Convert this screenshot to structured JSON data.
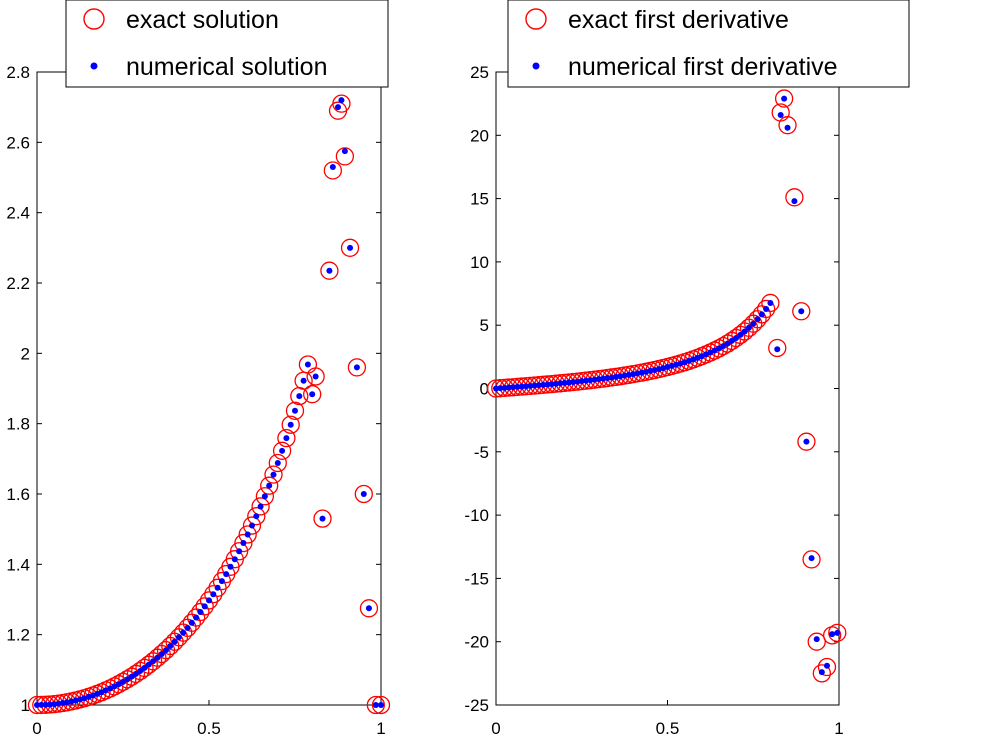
{
  "chart_data": [
    {
      "type": "scatter",
      "xlim": [
        0,
        1
      ],
      "ylim": [
        1,
        2.8
      ],
      "xticks": [
        "0",
        "0.5",
        "1"
      ],
      "yticks": [
        "1",
        "1.2",
        "1.4",
        "1.6",
        "1.8",
        "2",
        "2.2",
        "2.4",
        "2.6",
        "2.8"
      ],
      "legend_position": "top",
      "series": [
        {
          "name": "exact solution",
          "marker": "circle-open",
          "color": "#ff0000",
          "x": [
            0,
            0.0125,
            0.025,
            0.0375,
            0.05,
            0.0625,
            0.075,
            0.0875,
            0.1,
            0.1125,
            0.125,
            0.1375,
            0.15,
            0.1625,
            0.175,
            0.1875,
            0.2,
            0.2125,
            0.225,
            0.2375,
            0.25,
            0.2625,
            0.275,
            0.2875,
            0.3,
            0.3125,
            0.325,
            0.3375,
            0.35,
            0.3625,
            0.375,
            0.3875,
            0.4,
            0.4125,
            0.425,
            0.4375,
            0.45,
            0.4625,
            0.475,
            0.4875,
            0.5,
            0.5125,
            0.525,
            0.5375,
            0.55,
            0.5625,
            0.575,
            0.5875,
            0.6,
            0.6125,
            0.625,
            0.6375,
            0.65,
            0.6625,
            0.675,
            0.6875,
            0.7,
            0.7125,
            0.725,
            0.7375,
            0.75,
            0.7625,
            0.775,
            0.7875,
            0.8,
            0.81,
            0.83,
            0.85,
            0.86,
            0.875,
            0.885,
            0.895,
            0.91,
            0.93,
            0.95,
            0.965,
            0.985,
            1.0
          ],
          "y": [
            1.0,
            1.0002,
            1.0006,
            1.0014,
            1.0025,
            1.0039,
            1.0056,
            1.0077,
            1.0101,
            1.0128,
            1.0159,
            1.0192,
            1.023,
            1.0271,
            1.0315,
            1.0363,
            1.0415,
            1.047,
            1.0529,
            1.0592,
            1.0659,
            1.073,
            1.0805,
            1.0884,
            1.0967,
            1.1055,
            1.1147,
            1.1243,
            1.1345,
            1.145,
            1.1561,
            1.1677,
            1.1798,
            1.1925,
            1.2057,
            1.2194,
            1.2338,
            1.2487,
            1.2643,
            1.2805,
            1.2974,
            1.315,
            1.3333,
            1.3524,
            1.3723,
            1.393,
            1.4146,
            1.4371,
            1.4605,
            1.4849,
            1.5103,
            1.5369,
            1.5646,
            1.5935,
            1.6237,
            1.6552,
            1.6882,
            1.7228,
            1.7589,
            1.7969,
            1.8366,
            1.8783,
            1.9221,
            1.9682,
            1.8838,
            1.9341,
            1.53,
            2.235,
            2.52,
            2.69,
            2.71,
            2.56,
            2.3,
            1.96,
            1.6,
            1.275,
            1.0,
            1.0
          ]
        },
        {
          "name": "numerical solution",
          "marker": "dot",
          "color": "#0000ff",
          "x": [
            0,
            0.0125,
            0.025,
            0.0375,
            0.05,
            0.0625,
            0.075,
            0.0875,
            0.1,
            0.1125,
            0.125,
            0.1375,
            0.15,
            0.1625,
            0.175,
            0.1875,
            0.2,
            0.2125,
            0.225,
            0.2375,
            0.25,
            0.2625,
            0.275,
            0.2875,
            0.3,
            0.3125,
            0.325,
            0.3375,
            0.35,
            0.3625,
            0.375,
            0.3875,
            0.4,
            0.4125,
            0.425,
            0.4375,
            0.45,
            0.4625,
            0.475,
            0.4875,
            0.5,
            0.5125,
            0.525,
            0.5375,
            0.55,
            0.5625,
            0.575,
            0.5875,
            0.6,
            0.6125,
            0.625,
            0.6375,
            0.65,
            0.6625,
            0.675,
            0.6875,
            0.7,
            0.7125,
            0.725,
            0.7375,
            0.75,
            0.7625,
            0.775,
            0.7875,
            0.8,
            0.81,
            0.83,
            0.85,
            0.86,
            0.875,
            0.885,
            0.895,
            0.91,
            0.93,
            0.95,
            0.965,
            0.985,
            1.0
          ],
          "y": [
            1.0,
            1.0002,
            1.0006,
            1.0014,
            1.0025,
            1.0039,
            1.0056,
            1.0077,
            1.0101,
            1.0128,
            1.0159,
            1.0192,
            1.023,
            1.0271,
            1.0315,
            1.0363,
            1.0415,
            1.047,
            1.0529,
            1.0592,
            1.0659,
            1.073,
            1.0805,
            1.0884,
            1.0967,
            1.1055,
            1.1147,
            1.1243,
            1.1345,
            1.145,
            1.1561,
            1.1677,
            1.1798,
            1.1925,
            1.2057,
            1.2194,
            1.2338,
            1.2487,
            1.2643,
            1.2805,
            1.2974,
            1.315,
            1.3333,
            1.3524,
            1.3723,
            1.393,
            1.4146,
            1.4371,
            1.4605,
            1.4849,
            1.5103,
            1.5369,
            1.5646,
            1.5935,
            1.6237,
            1.6552,
            1.6882,
            1.7228,
            1.7589,
            1.7969,
            1.8366,
            1.8783,
            1.9221,
            1.9682,
            1.8838,
            1.9341,
            1.53,
            2.235,
            2.53,
            2.7,
            2.72,
            2.575,
            2.3,
            1.96,
            1.6,
            1.275,
            1.0,
            1.0
          ]
        }
      ]
    },
    {
      "type": "scatter",
      "xlim": [
        0,
        1
      ],
      "ylim": [
        -25,
        25
      ],
      "xticks": [
        "0",
        "0.5",
        "1"
      ],
      "yticks": [
        "-25",
        "-20",
        "-15",
        "-10",
        "-5",
        "0",
        "5",
        "10",
        "15",
        "20",
        "25"
      ],
      "legend_position": "top",
      "series": [
        {
          "name": "exact first derivative",
          "marker": "circle-open",
          "color": "#ff0000",
          "x": [
            0,
            0.0125,
            0.025,
            0.0375,
            0.05,
            0.0625,
            0.075,
            0.0875,
            0.1,
            0.1125,
            0.125,
            0.1375,
            0.15,
            0.1625,
            0.175,
            0.1875,
            0.2,
            0.2125,
            0.225,
            0.2375,
            0.25,
            0.2625,
            0.275,
            0.2875,
            0.3,
            0.3125,
            0.325,
            0.3375,
            0.35,
            0.3625,
            0.375,
            0.3875,
            0.4,
            0.4125,
            0.425,
            0.4375,
            0.45,
            0.4625,
            0.475,
            0.4875,
            0.5,
            0.5125,
            0.525,
            0.5375,
            0.55,
            0.5625,
            0.575,
            0.5875,
            0.6,
            0.6125,
            0.625,
            0.6375,
            0.65,
            0.6625,
            0.675,
            0.6875,
            0.7,
            0.7125,
            0.725,
            0.7375,
            0.75,
            0.7625,
            0.775,
            0.7875,
            0.8,
            0.82,
            0.83,
            0.84,
            0.85,
            0.87,
            0.89,
            0.905,
            0.92,
            0.935,
            0.95,
            0.965,
            0.98,
            0.995
          ],
          "y": [
            0.0,
            0.025,
            0.05,
            0.075,
            0.1,
            0.126,
            0.152,
            0.179,
            0.206,
            0.233,
            0.261,
            0.29,
            0.319,
            0.348,
            0.379,
            0.41,
            0.442,
            0.475,
            0.509,
            0.544,
            0.581,
            0.618,
            0.657,
            0.697,
            0.738,
            0.781,
            0.826,
            0.872,
            0.92,
            0.97,
            1.023,
            1.077,
            1.134,
            1.193,
            1.255,
            1.32,
            1.388,
            1.459,
            1.534,
            1.613,
            1.696,
            1.783,
            1.875,
            1.972,
            2.075,
            2.184,
            2.3,
            2.422,
            2.552,
            2.691,
            2.839,
            2.998,
            3.167,
            3.35,
            3.546,
            3.758,
            3.987,
            4.235,
            4.504,
            4.797,
            5.118,
            5.469,
            5.856,
            6.283,
            6.757,
            3.2,
            21.8,
            22.9,
            20.8,
            15.1,
            6.1,
            -4.2,
            -13.5,
            -20.0,
            -22.5,
            -22.0,
            -19.5,
            -19.3
          ]
        },
        {
          "name": "numerical first derivative",
          "marker": "dot",
          "color": "#0000ff",
          "x": [
            0,
            0.0125,
            0.025,
            0.0375,
            0.05,
            0.0625,
            0.075,
            0.0875,
            0.1,
            0.1125,
            0.125,
            0.1375,
            0.15,
            0.1625,
            0.175,
            0.1875,
            0.2,
            0.2125,
            0.225,
            0.2375,
            0.25,
            0.2625,
            0.275,
            0.2875,
            0.3,
            0.3125,
            0.325,
            0.3375,
            0.35,
            0.3625,
            0.375,
            0.3875,
            0.4,
            0.4125,
            0.425,
            0.4375,
            0.45,
            0.4625,
            0.475,
            0.4875,
            0.5,
            0.5125,
            0.525,
            0.5375,
            0.55,
            0.5625,
            0.575,
            0.5875,
            0.6,
            0.6125,
            0.625,
            0.6375,
            0.65,
            0.6625,
            0.675,
            0.6875,
            0.7,
            0.7125,
            0.725,
            0.7375,
            0.75,
            0.7625,
            0.775,
            0.7875,
            0.8,
            0.82,
            0.83,
            0.84,
            0.85,
            0.87,
            0.89,
            0.905,
            0.92,
            0.935,
            0.95,
            0.965,
            0.98,
            0.995
          ],
          "y": [
            0.0,
            0.025,
            0.05,
            0.075,
            0.1,
            0.126,
            0.152,
            0.179,
            0.206,
            0.233,
            0.261,
            0.29,
            0.319,
            0.348,
            0.379,
            0.41,
            0.442,
            0.475,
            0.509,
            0.544,
            0.581,
            0.618,
            0.657,
            0.697,
            0.738,
            0.781,
            0.826,
            0.872,
            0.92,
            0.97,
            1.023,
            1.077,
            1.134,
            1.193,
            1.255,
            1.32,
            1.388,
            1.459,
            1.534,
            1.613,
            1.696,
            1.783,
            1.875,
            1.972,
            2.075,
            2.184,
            2.3,
            2.422,
            2.552,
            2.691,
            2.839,
            2.998,
            3.167,
            3.35,
            3.546,
            3.758,
            3.987,
            4.235,
            4.504,
            4.797,
            5.118,
            5.469,
            5.856,
            6.283,
            6.757,
            3.1,
            21.6,
            22.9,
            20.6,
            14.8,
            6.1,
            -4.2,
            -13.4,
            -19.8,
            -22.4,
            -21.9,
            -19.4,
            -19.3
          ]
        }
      ]
    }
  ]
}
